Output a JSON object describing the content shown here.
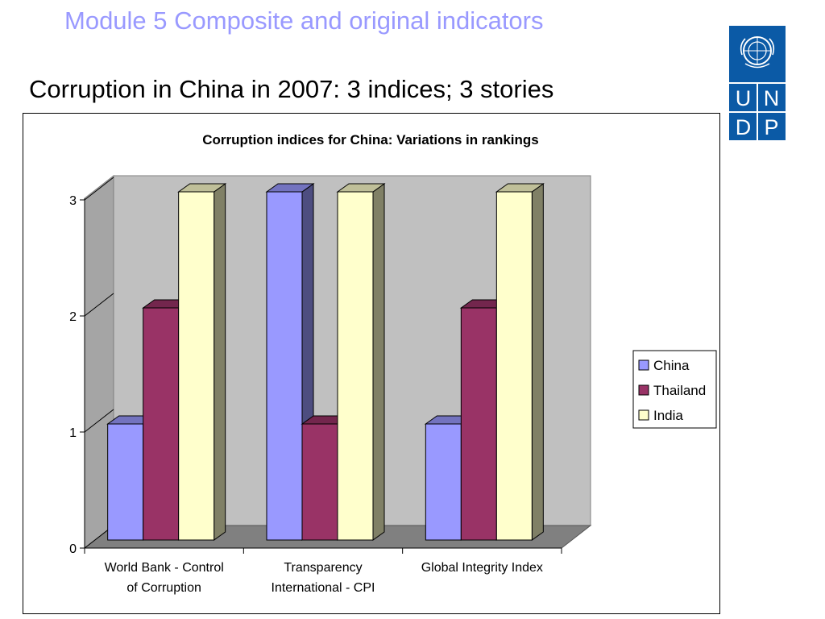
{
  "header": {
    "module_title": "Module 5  Composite and original indicators",
    "slide_title": "Corruption in China in 2007: 3 indices; 3 stories"
  },
  "logo": {
    "icon": "un-emblem-icon",
    "letters": [
      "U",
      "N",
      "D",
      "P"
    ],
    "color": "#0b5aa6"
  },
  "chart_data": {
    "type": "bar",
    "title": "Corruption indices for China: Variations in rankings",
    "xlabel": "",
    "ylabel": "",
    "categories": [
      [
        "World Bank - Control",
        "of Corruption"
      ],
      [
        "Transparency",
        "International - CPI"
      ],
      [
        "Global Integrity Index"
      ]
    ],
    "series": [
      {
        "name": "China",
        "values": [
          1,
          3,
          1
        ],
        "color": "#9999ff"
      },
      {
        "name": "Thailand",
        "values": [
          2,
          1,
          2
        ],
        "color": "#993366"
      },
      {
        "name": "India",
        "values": [
          3,
          3,
          3
        ],
        "color": "#ffffcc"
      }
    ],
    "ylim": [
      0,
      3
    ],
    "yticks": [
      0,
      1,
      2,
      3
    ],
    "style": "3d",
    "grid": false,
    "legend_position": "right",
    "wall_color": "#c0c0c0",
    "floor_color": "#808080"
  }
}
